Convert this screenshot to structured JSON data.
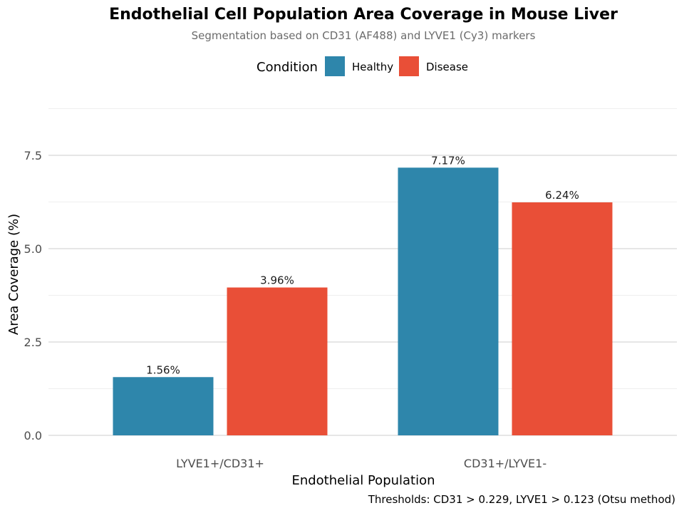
{
  "chart_data": {
    "type": "bar",
    "title": "Endothelial Cell Population Area Coverage in Mouse Liver",
    "subtitle": "Segmentation based on CD31 (AF488) and LYVE1 (Cy3) markers",
    "xlabel": "Endothelial Population",
    "ylabel": "Area Coverage (%)",
    "caption": "Thresholds: CD31 > 0.229, LYVE1 > 0.123 (Otsu method)",
    "categories": [
      "LYVE1+/CD31+",
      "CD31+/LYVE1-"
    ],
    "series": [
      {
        "name": "Healthy",
        "color": "#2E86AB",
        "values": [
          1.56,
          7.17
        ],
        "labels": [
          "1.56%",
          "7.17%"
        ]
      },
      {
        "name": "Disease",
        "color": "#E94F37",
        "values": [
          3.96,
          6.24
        ],
        "labels": [
          "3.96%",
          "6.24%"
        ]
      }
    ],
    "legend": {
      "title": "Condition",
      "position": "top"
    },
    "yticks": [
      0.0,
      2.5,
      5.0,
      7.5
    ],
    "ytick_labels": [
      "0.0",
      "2.5",
      "5.0",
      "7.5"
    ],
    "ylim": [
      -0.0,
      8.76
    ],
    "grid": true
  }
}
